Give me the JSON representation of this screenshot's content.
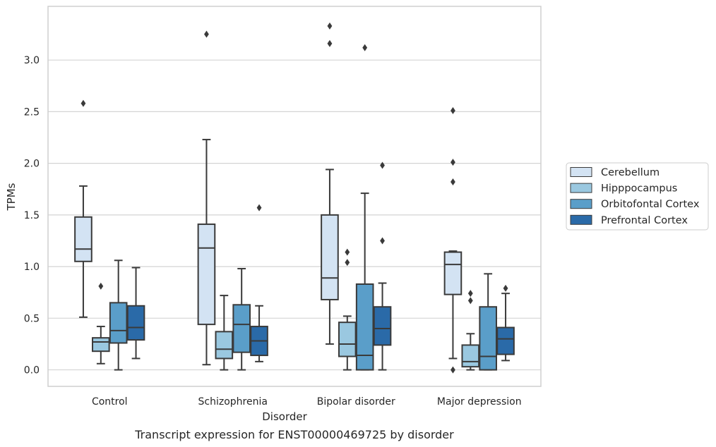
{
  "chart_data": {
    "type": "box",
    "xlabel": "Disorder",
    "ylabel": "TPMs",
    "caption": "Transcript expression for ENST00000469725 by disorder",
    "ylim": [
      -0.16,
      3.52
    ],
    "yticks": [
      0.0,
      0.5,
      1.0,
      1.5,
      2.0,
      2.5,
      3.0
    ],
    "ytick_labels": [
      "0.0",
      "0.5",
      "1.0",
      "1.5",
      "2.0",
      "2.5",
      "3.0"
    ],
    "grid": true,
    "legend_position": "right",
    "categories": [
      "Control",
      "Schizophrenia",
      "Bipolar disorder",
      "Major depression"
    ],
    "series": [
      {
        "name": "Cerebellum",
        "color": "#d3e3f3",
        "boxes": [
          {
            "whislo": 0.51,
            "q1": 1.05,
            "med": 1.17,
            "q3": 1.48,
            "whishi": 1.78,
            "fliers": [
              2.58
            ]
          },
          {
            "whislo": 0.05,
            "q1": 0.44,
            "med": 1.18,
            "q3": 1.41,
            "whishi": 2.23,
            "fliers": [
              3.25
            ]
          },
          {
            "whislo": 0.25,
            "q1": 0.68,
            "med": 0.89,
            "q3": 1.5,
            "whishi": 1.94,
            "fliers": [
              3.16,
              3.33
            ]
          },
          {
            "whislo": 0.11,
            "q1": 0.73,
            "med": 1.02,
            "q3": 1.14,
            "whishi": 1.15,
            "fliers": [
              0.0,
              1.82,
              2.01,
              2.51
            ]
          }
        ]
      },
      {
        "name": "Hipppocampus",
        "color": "#9ac8e0",
        "boxes": [
          {
            "whislo": 0.06,
            "q1": 0.18,
            "med": 0.27,
            "q3": 0.31,
            "whishi": 0.42,
            "fliers": [
              0.81
            ]
          },
          {
            "whislo": 0.0,
            "q1": 0.11,
            "med": 0.2,
            "q3": 0.37,
            "whishi": 0.72,
            "fliers": []
          },
          {
            "whislo": 0.0,
            "q1": 0.13,
            "med": 0.25,
            "q3": 0.46,
            "whishi": 0.52,
            "fliers": [
              1.04,
              1.14
            ]
          },
          {
            "whislo": 0.0,
            "q1": 0.03,
            "med": 0.08,
            "q3": 0.24,
            "whishi": 0.35,
            "fliers": [
              0.67,
              0.74
            ]
          }
        ]
      },
      {
        "name": "Orbitofontal Cortex",
        "color": "#5a9ec9",
        "boxes": [
          {
            "whislo": 0.0,
            "q1": 0.26,
            "med": 0.38,
            "q3": 0.65,
            "whishi": 1.06,
            "fliers": []
          },
          {
            "whislo": 0.0,
            "q1": 0.17,
            "med": 0.44,
            "q3": 0.63,
            "whishi": 0.98,
            "fliers": []
          },
          {
            "whislo": 0.0,
            "q1": 0.0,
            "med": 0.14,
            "q3": 0.83,
            "whishi": 1.71,
            "fliers": [
              3.12
            ]
          },
          {
            "whislo": 0.0,
            "q1": 0.0,
            "med": 0.13,
            "q3": 0.61,
            "whishi": 0.93,
            "fliers": []
          }
        ]
      },
      {
        "name": "Prefrontal Cortex",
        "color": "#2a6aa8",
        "boxes": [
          {
            "whislo": 0.11,
            "q1": 0.29,
            "med": 0.41,
            "q3": 0.62,
            "whishi": 0.99,
            "fliers": []
          },
          {
            "whislo": 0.08,
            "q1": 0.14,
            "med": 0.28,
            "q3": 0.42,
            "whishi": 0.62,
            "fliers": [
              1.57
            ]
          },
          {
            "whislo": 0.0,
            "q1": 0.24,
            "med": 0.4,
            "q3": 0.61,
            "whishi": 0.84,
            "fliers": [
              1.25,
              1.98
            ]
          },
          {
            "whislo": 0.09,
            "q1": 0.15,
            "med": 0.3,
            "q3": 0.41,
            "whishi": 0.74,
            "fliers": [
              0.79
            ]
          }
        ]
      }
    ]
  }
}
